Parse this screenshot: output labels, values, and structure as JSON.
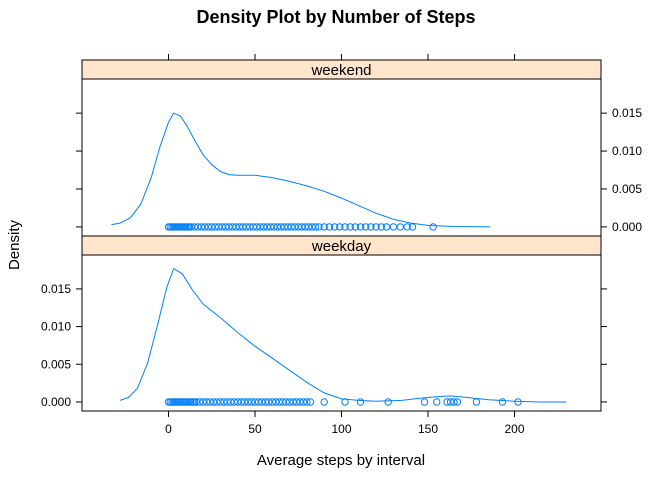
{
  "chart_data": {
    "type": "line",
    "title": "Density Plot by Number of Steps",
    "xlabel": "Average steps by interval",
    "ylabel": "Density",
    "xlim": [
      -50,
      250
    ],
    "ylim": [
      -0.0012,
      0.0195
    ],
    "x_ticks": [
      0,
      50,
      100,
      150,
      200
    ],
    "y_ticks": [
      0.0,
      0.005,
      0.01,
      0.015
    ],
    "y_tick_labels": [
      "0.000",
      "0.005",
      "0.010",
      "0.015"
    ],
    "grid": false,
    "line_color": "#0080ff",
    "strip_color": "#ffe5cc",
    "panels": [
      {
        "name": "weekend",
        "y_axis_side": "right",
        "density": [
          [
            -33,
            0.0003
          ],
          [
            -28,
            0.0005
          ],
          [
            -22,
            0.0012
          ],
          [
            -16,
            0.003
          ],
          [
            -10,
            0.0065
          ],
          [
            -5,
            0.0105
          ],
          [
            0,
            0.0138
          ],
          [
            3,
            0.015
          ],
          [
            7,
            0.0146
          ],
          [
            11,
            0.0132
          ],
          [
            15,
            0.0115
          ],
          [
            20,
            0.0095
          ],
          [
            25,
            0.0082
          ],
          [
            30,
            0.0073
          ],
          [
            35,
            0.0069
          ],
          [
            40,
            0.0068
          ],
          [
            50,
            0.0068
          ],
          [
            60,
            0.0065
          ],
          [
            70,
            0.006
          ],
          [
            80,
            0.0054
          ],
          [
            90,
            0.0047
          ],
          [
            100,
            0.0038
          ],
          [
            110,
            0.0028
          ],
          [
            120,
            0.0018
          ],
          [
            130,
            0.001
          ],
          [
            140,
            0.0005
          ],
          [
            150,
            0.0002
          ],
          [
            165,
            5e-05
          ],
          [
            186,
            0.0
          ]
        ],
        "points": [
          0,
          1,
          2,
          3,
          4,
          5,
          6,
          7,
          8,
          9,
          10,
          11,
          12,
          13,
          15,
          17,
          19,
          21,
          23,
          25,
          27,
          29,
          31,
          33,
          35,
          37,
          39,
          41,
          43,
          45,
          47,
          49,
          51,
          53,
          55,
          57,
          59,
          61,
          63,
          65,
          67,
          69,
          71,
          73,
          75,
          77,
          79,
          81,
          83,
          85,
          87,
          90,
          93,
          96,
          99,
          102,
          105,
          108,
          111,
          114,
          117,
          120,
          123,
          126,
          130,
          134,
          138,
          141,
          153
        ]
      },
      {
        "name": "weekday",
        "y_axis_side": "left",
        "density": [
          [
            -28,
            0.0002
          ],
          [
            -23,
            0.0006
          ],
          [
            -18,
            0.0018
          ],
          [
            -12,
            0.0052
          ],
          [
            -6,
            0.0105
          ],
          [
            -1,
            0.0152
          ],
          [
            3,
            0.0177
          ],
          [
            8,
            0.017
          ],
          [
            14,
            0.0148
          ],
          [
            20,
            0.013
          ],
          [
            30,
            0.0112
          ],
          [
            40,
            0.0092
          ],
          [
            50,
            0.0074
          ],
          [
            60,
            0.0058
          ],
          [
            70,
            0.0042
          ],
          [
            80,
            0.0026
          ],
          [
            90,
            0.0012
          ],
          [
            100,
            0.0004
          ],
          [
            110,
            0.0002
          ],
          [
            120,
            0.0001
          ],
          [
            135,
            0.0002
          ],
          [
            145,
            0.0005
          ],
          [
            155,
            0.0007
          ],
          [
            163,
            0.0008
          ],
          [
            172,
            0.0006
          ],
          [
            185,
            0.0003
          ],
          [
            200,
            0.0001
          ],
          [
            215,
            0.0
          ],
          [
            230,
            0.0
          ]
        ],
        "points": [
          0,
          1,
          2,
          3,
          4,
          5,
          6,
          7,
          8,
          9,
          10,
          11,
          12,
          13,
          14,
          15,
          16,
          18,
          20,
          22,
          24,
          26,
          28,
          30,
          32,
          34,
          36,
          38,
          40,
          42,
          44,
          46,
          48,
          50,
          52,
          54,
          56,
          58,
          60,
          62,
          64,
          66,
          68,
          70,
          72,
          74,
          76,
          78,
          80,
          82,
          90,
          102,
          111,
          127,
          148,
          155,
          161,
          163,
          165,
          167,
          178,
          193,
          202
        ]
      }
    ]
  }
}
